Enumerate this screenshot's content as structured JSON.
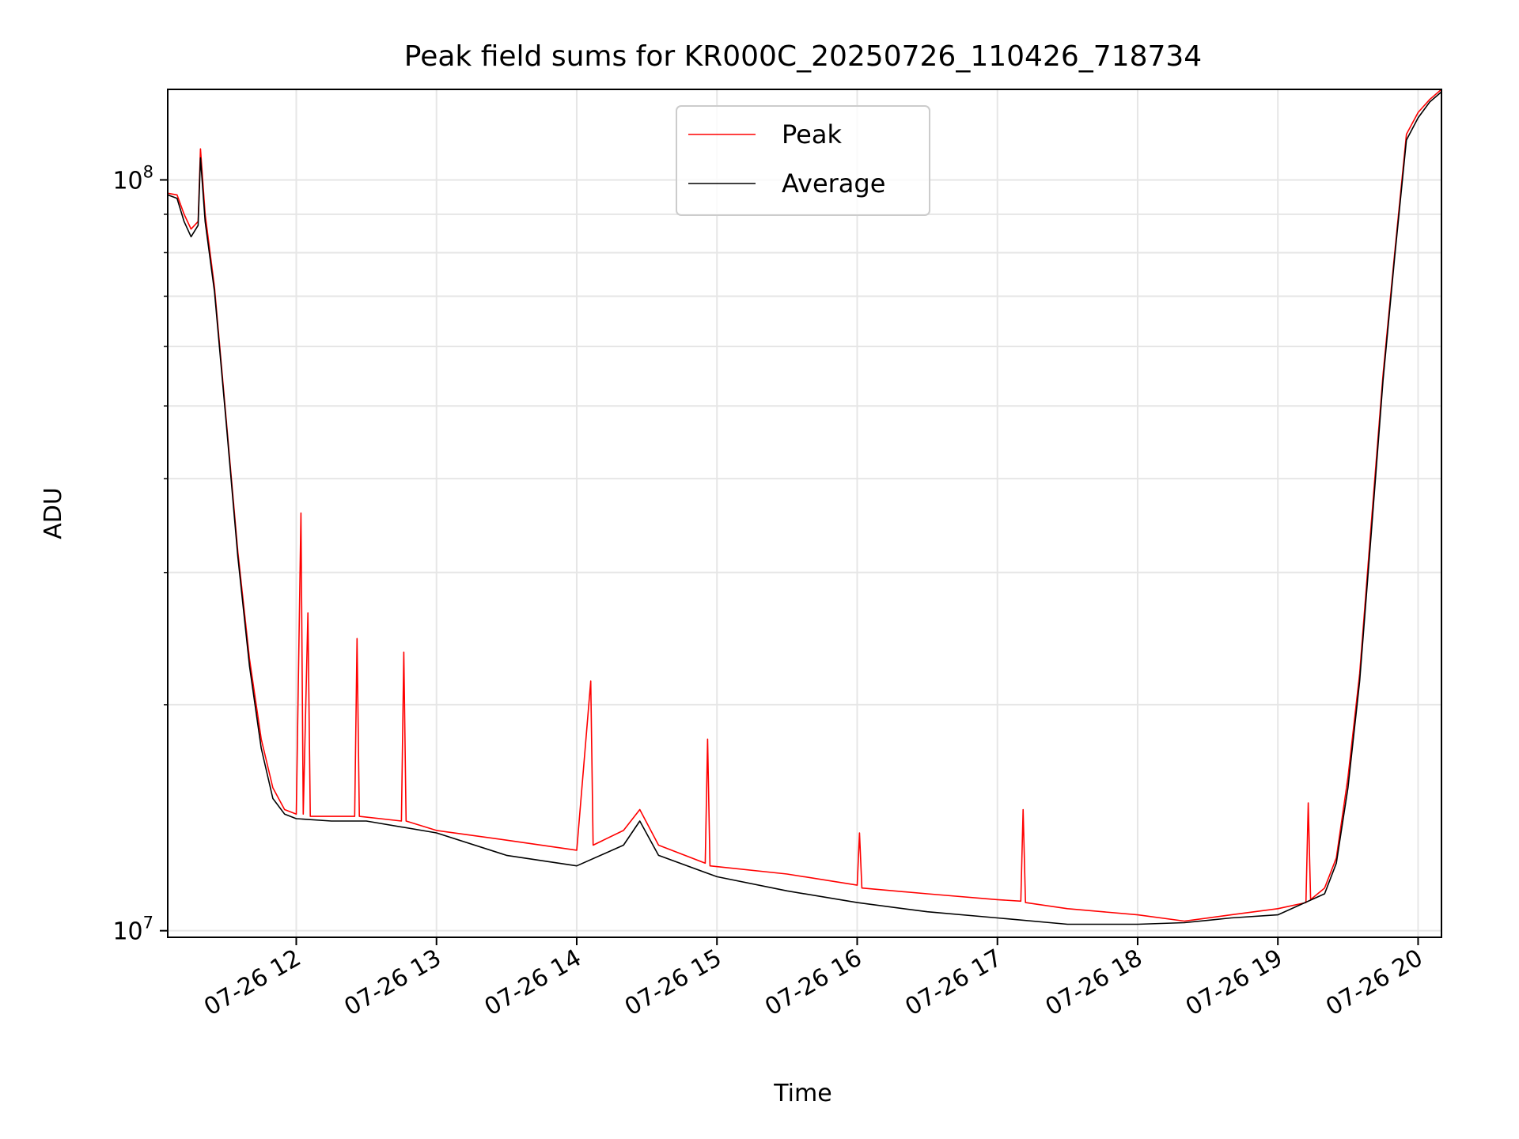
{
  "chart_data": {
    "type": "line",
    "title": "Peak field sums for KR000C_20250726_110426_718734",
    "xlabel": "Time",
    "ylabel": "ADU",
    "yscale": "log",
    "ylim": [
      9800000,
      132000000
    ],
    "xlim": [
      "2025-07-26 11:05",
      "2025-07-26 20:10"
    ],
    "grid": true,
    "legend_position": "top-center",
    "x_ticks": [
      "07-26 12",
      "07-26 13",
      "07-26 14",
      "07-26 15",
      "07-26 16",
      "07-26 17",
      "07-26 18",
      "07-26 19",
      "07-26 20"
    ],
    "x_tick_times": [
      "2025-07-26 12:00",
      "2025-07-26 13:00",
      "2025-07-26 14:00",
      "2025-07-26 15:00",
      "2025-07-26 16:00",
      "2025-07-26 17:00",
      "2025-07-26 18:00",
      "2025-07-26 19:00",
      "2025-07-26 20:00"
    ],
    "y_ticks": [
      {
        "value": 10000000,
        "base": "10",
        "exp": "7"
      },
      {
        "value": 100000000,
        "base": "10",
        "exp": "8"
      }
    ],
    "series": [
      {
        "name": "Peak",
        "color": "#ff0000",
        "points": [
          [
            "2025-07-26 11:05",
            96000000
          ],
          [
            "2025-07-26 11:09",
            95500000
          ],
          [
            "2025-07-26 11:12",
            90000000
          ],
          [
            "2025-07-26 11:15",
            86000000
          ],
          [
            "2025-07-26 11:18",
            88000000
          ],
          [
            "2025-07-26 11:19",
            110000000
          ],
          [
            "2025-07-26 11:21",
            90000000
          ],
          [
            "2025-07-26 11:25",
            72000000
          ],
          [
            "2025-07-26 11:30",
            48000000
          ],
          [
            "2025-07-26 11:35",
            32000000
          ],
          [
            "2025-07-26 11:40",
            23000000
          ],
          [
            "2025-07-26 11:45",
            18000000
          ],
          [
            "2025-07-26 11:50",
            15500000
          ],
          [
            "2025-07-26 11:55",
            14500000
          ],
          [
            "2025-07-26 12:00",
            14300000
          ],
          [
            "2025-07-26 12:02",
            36000000
          ],
          [
            "2025-07-26 12:03",
            14300000
          ],
          [
            "2025-07-26 12:05",
            26500000
          ],
          [
            "2025-07-26 12:06",
            14200000
          ],
          [
            "2025-07-26 12:15",
            14200000
          ],
          [
            "2025-07-26 12:25",
            14200000
          ],
          [
            "2025-07-26 12:26",
            24500000
          ],
          [
            "2025-07-26 12:27",
            14200000
          ],
          [
            "2025-07-26 12:45",
            14000000
          ],
          [
            "2025-07-26 12:46",
            23500000
          ],
          [
            "2025-07-26 12:47",
            14000000
          ],
          [
            "2025-07-26 13:00",
            13600000
          ],
          [
            "2025-07-26 13:30",
            13200000
          ],
          [
            "2025-07-26 14:00",
            12800000
          ],
          [
            "2025-07-26 14:06",
            21500000
          ],
          [
            "2025-07-26 14:07",
            13000000
          ],
          [
            "2025-07-26 14:20",
            13600000
          ],
          [
            "2025-07-26 14:27",
            14500000
          ],
          [
            "2025-07-26 14:35",
            13000000
          ],
          [
            "2025-07-26 14:55",
            12300000
          ],
          [
            "2025-07-26 14:56",
            18000000
          ],
          [
            "2025-07-26 14:57",
            12200000
          ],
          [
            "2025-07-26 15:30",
            11900000
          ],
          [
            "2025-07-26 16:00",
            11500000
          ],
          [
            "2025-07-26 16:01",
            13500000
          ],
          [
            "2025-07-26 16:02",
            11400000
          ],
          [
            "2025-07-26 16:30",
            11200000
          ],
          [
            "2025-07-26 17:00",
            11000000
          ],
          [
            "2025-07-26 17:10",
            10950000
          ],
          [
            "2025-07-26 17:11",
            14500000
          ],
          [
            "2025-07-26 17:12",
            10900000
          ],
          [
            "2025-07-26 17:30",
            10700000
          ],
          [
            "2025-07-26 18:00",
            10500000
          ],
          [
            "2025-07-26 18:20",
            10300000
          ],
          [
            "2025-07-26 18:40",
            10500000
          ],
          [
            "2025-07-26 19:00",
            10700000
          ],
          [
            "2025-07-26 19:12",
            10900000
          ],
          [
            "2025-07-26 19:13",
            14800000
          ],
          [
            "2025-07-26 19:14",
            11000000
          ],
          [
            "2025-07-26 19:20",
            11400000
          ],
          [
            "2025-07-26 19:25",
            12500000
          ],
          [
            "2025-07-26 19:30",
            16000000
          ],
          [
            "2025-07-26 19:35",
            22000000
          ],
          [
            "2025-07-26 19:40",
            35000000
          ],
          [
            "2025-07-26 19:45",
            55000000
          ],
          [
            "2025-07-26 19:50",
            80000000
          ],
          [
            "2025-07-26 19:55",
            115000000
          ],
          [
            "2025-07-26 20:00",
            123000000
          ],
          [
            "2025-07-26 20:05",
            128000000
          ],
          [
            "2025-07-26 20:10",
            132000000
          ]
        ]
      },
      {
        "name": "Average",
        "color": "#000000",
        "points": [
          [
            "2025-07-26 11:05",
            95500000
          ],
          [
            "2025-07-26 11:09",
            94500000
          ],
          [
            "2025-07-26 11:12",
            88000000
          ],
          [
            "2025-07-26 11:15",
            84000000
          ],
          [
            "2025-07-26 11:18",
            87000000
          ],
          [
            "2025-07-26 11:19",
            107000000
          ],
          [
            "2025-07-26 11:21",
            88000000
          ],
          [
            "2025-07-26 11:25",
            71000000
          ],
          [
            "2025-07-26 11:30",
            47500000
          ],
          [
            "2025-07-26 11:35",
            31500000
          ],
          [
            "2025-07-26 11:40",
            22500000
          ],
          [
            "2025-07-26 11:45",
            17500000
          ],
          [
            "2025-07-26 11:50",
            15000000
          ],
          [
            "2025-07-26 11:55",
            14300000
          ],
          [
            "2025-07-26 12:00",
            14100000
          ],
          [
            "2025-07-26 12:15",
            14000000
          ],
          [
            "2025-07-26 12:30",
            14000000
          ],
          [
            "2025-07-26 13:00",
            13500000
          ],
          [
            "2025-07-26 13:30",
            12600000
          ],
          [
            "2025-07-26 14:00",
            12200000
          ],
          [
            "2025-07-26 14:20",
            13000000
          ],
          [
            "2025-07-26 14:27",
            14000000
          ],
          [
            "2025-07-26 14:35",
            12600000
          ],
          [
            "2025-07-26 15:00",
            11800000
          ],
          [
            "2025-07-26 15:30",
            11300000
          ],
          [
            "2025-07-26 16:00",
            10900000
          ],
          [
            "2025-07-26 16:30",
            10600000
          ],
          [
            "2025-07-26 17:00",
            10400000
          ],
          [
            "2025-07-26 17:30",
            10200000
          ],
          [
            "2025-07-26 18:00",
            10200000
          ],
          [
            "2025-07-26 18:20",
            10250000
          ],
          [
            "2025-07-26 18:40",
            10400000
          ],
          [
            "2025-07-26 19:00",
            10500000
          ],
          [
            "2025-07-26 19:20",
            11200000
          ],
          [
            "2025-07-26 19:25",
            12300000
          ],
          [
            "2025-07-26 19:30",
            15500000
          ],
          [
            "2025-07-26 19:35",
            21500000
          ],
          [
            "2025-07-26 19:40",
            34000000
          ],
          [
            "2025-07-26 19:45",
            54000000
          ],
          [
            "2025-07-26 19:50",
            79000000
          ],
          [
            "2025-07-26 19:55",
            113000000
          ],
          [
            "2025-07-26 20:00",
            121000000
          ],
          [
            "2025-07-26 20:05",
            127000000
          ],
          [
            "2025-07-26 20:10",
            131000000
          ]
        ]
      }
    ]
  }
}
